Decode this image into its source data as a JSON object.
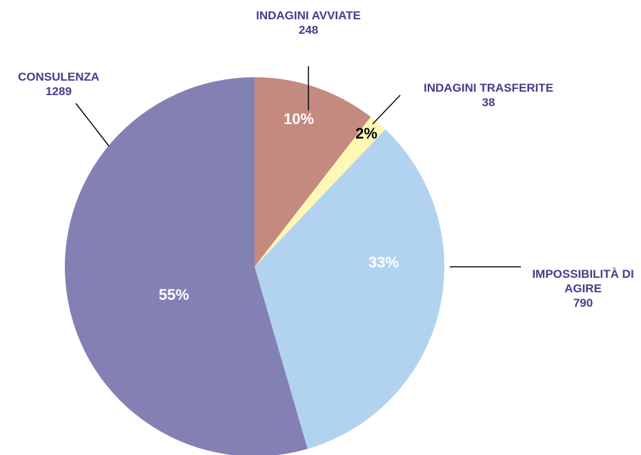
{
  "chart_data": {
    "type": "pie",
    "categories": [
      "INDAGINI AVVIATE",
      "INDAGINI TRASFERITE",
      "IMPOSSIBILITÀ DI AGIRE",
      "CONSULENZA"
    ],
    "values": [
      248,
      38,
      790,
      1289
    ],
    "percent_labels": [
      "10%",
      "2%",
      "33%",
      "55%"
    ],
    "colors": [
      "#c48a80",
      "#fdf8b4",
      "#b2d3f0",
      "#8380b4"
    ]
  }
}
